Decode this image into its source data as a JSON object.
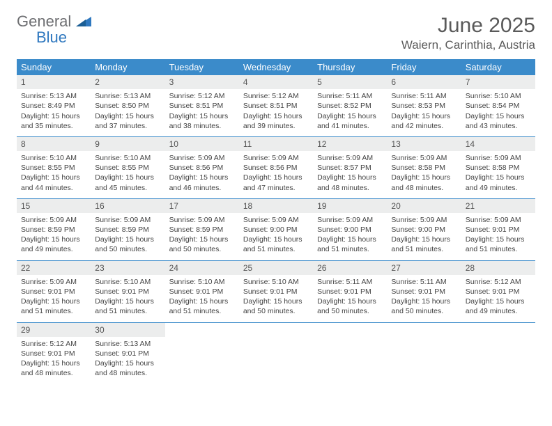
{
  "logo": {
    "word1": "General",
    "word2": "Blue"
  },
  "title": "June 2025",
  "location": "Waiern, Carinthia, Austria",
  "colors": {
    "header_bg": "#3b8bca",
    "header_text": "#ffffff",
    "daynum_bg": "#eceded",
    "rule": "#3b8bca",
    "logo_gray": "#6d6e71",
    "logo_blue": "#2f78bf"
  },
  "weekdays": [
    "Sunday",
    "Monday",
    "Tuesday",
    "Wednesday",
    "Thursday",
    "Friday",
    "Saturday"
  ],
  "weeks": [
    [
      {
        "n": "1",
        "sr": "Sunrise: 5:13 AM",
        "ss": "Sunset: 8:49 PM",
        "d1": "Daylight: 15 hours",
        "d2": "and 35 minutes."
      },
      {
        "n": "2",
        "sr": "Sunrise: 5:13 AM",
        "ss": "Sunset: 8:50 PM",
        "d1": "Daylight: 15 hours",
        "d2": "and 37 minutes."
      },
      {
        "n": "3",
        "sr": "Sunrise: 5:12 AM",
        "ss": "Sunset: 8:51 PM",
        "d1": "Daylight: 15 hours",
        "d2": "and 38 minutes."
      },
      {
        "n": "4",
        "sr": "Sunrise: 5:12 AM",
        "ss": "Sunset: 8:51 PM",
        "d1": "Daylight: 15 hours",
        "d2": "and 39 minutes."
      },
      {
        "n": "5",
        "sr": "Sunrise: 5:11 AM",
        "ss": "Sunset: 8:52 PM",
        "d1": "Daylight: 15 hours",
        "d2": "and 41 minutes."
      },
      {
        "n": "6",
        "sr": "Sunrise: 5:11 AM",
        "ss": "Sunset: 8:53 PM",
        "d1": "Daylight: 15 hours",
        "d2": "and 42 minutes."
      },
      {
        "n": "7",
        "sr": "Sunrise: 5:10 AM",
        "ss": "Sunset: 8:54 PM",
        "d1": "Daylight: 15 hours",
        "d2": "and 43 minutes."
      }
    ],
    [
      {
        "n": "8",
        "sr": "Sunrise: 5:10 AM",
        "ss": "Sunset: 8:55 PM",
        "d1": "Daylight: 15 hours",
        "d2": "and 44 minutes."
      },
      {
        "n": "9",
        "sr": "Sunrise: 5:10 AM",
        "ss": "Sunset: 8:55 PM",
        "d1": "Daylight: 15 hours",
        "d2": "and 45 minutes."
      },
      {
        "n": "10",
        "sr": "Sunrise: 5:09 AM",
        "ss": "Sunset: 8:56 PM",
        "d1": "Daylight: 15 hours",
        "d2": "and 46 minutes."
      },
      {
        "n": "11",
        "sr": "Sunrise: 5:09 AM",
        "ss": "Sunset: 8:56 PM",
        "d1": "Daylight: 15 hours",
        "d2": "and 47 minutes."
      },
      {
        "n": "12",
        "sr": "Sunrise: 5:09 AM",
        "ss": "Sunset: 8:57 PM",
        "d1": "Daylight: 15 hours",
        "d2": "and 48 minutes."
      },
      {
        "n": "13",
        "sr": "Sunrise: 5:09 AM",
        "ss": "Sunset: 8:58 PM",
        "d1": "Daylight: 15 hours",
        "d2": "and 48 minutes."
      },
      {
        "n": "14",
        "sr": "Sunrise: 5:09 AM",
        "ss": "Sunset: 8:58 PM",
        "d1": "Daylight: 15 hours",
        "d2": "and 49 minutes."
      }
    ],
    [
      {
        "n": "15",
        "sr": "Sunrise: 5:09 AM",
        "ss": "Sunset: 8:59 PM",
        "d1": "Daylight: 15 hours",
        "d2": "and 49 minutes."
      },
      {
        "n": "16",
        "sr": "Sunrise: 5:09 AM",
        "ss": "Sunset: 8:59 PM",
        "d1": "Daylight: 15 hours",
        "d2": "and 50 minutes."
      },
      {
        "n": "17",
        "sr": "Sunrise: 5:09 AM",
        "ss": "Sunset: 8:59 PM",
        "d1": "Daylight: 15 hours",
        "d2": "and 50 minutes."
      },
      {
        "n": "18",
        "sr": "Sunrise: 5:09 AM",
        "ss": "Sunset: 9:00 PM",
        "d1": "Daylight: 15 hours",
        "d2": "and 51 minutes."
      },
      {
        "n": "19",
        "sr": "Sunrise: 5:09 AM",
        "ss": "Sunset: 9:00 PM",
        "d1": "Daylight: 15 hours",
        "d2": "and 51 minutes."
      },
      {
        "n": "20",
        "sr": "Sunrise: 5:09 AM",
        "ss": "Sunset: 9:00 PM",
        "d1": "Daylight: 15 hours",
        "d2": "and 51 minutes."
      },
      {
        "n": "21",
        "sr": "Sunrise: 5:09 AM",
        "ss": "Sunset: 9:01 PM",
        "d1": "Daylight: 15 hours",
        "d2": "and 51 minutes."
      }
    ],
    [
      {
        "n": "22",
        "sr": "Sunrise: 5:09 AM",
        "ss": "Sunset: 9:01 PM",
        "d1": "Daylight: 15 hours",
        "d2": "and 51 minutes."
      },
      {
        "n": "23",
        "sr": "Sunrise: 5:10 AM",
        "ss": "Sunset: 9:01 PM",
        "d1": "Daylight: 15 hours",
        "d2": "and 51 minutes."
      },
      {
        "n": "24",
        "sr": "Sunrise: 5:10 AM",
        "ss": "Sunset: 9:01 PM",
        "d1": "Daylight: 15 hours",
        "d2": "and 51 minutes."
      },
      {
        "n": "25",
        "sr": "Sunrise: 5:10 AM",
        "ss": "Sunset: 9:01 PM",
        "d1": "Daylight: 15 hours",
        "d2": "and 50 minutes."
      },
      {
        "n": "26",
        "sr": "Sunrise: 5:11 AM",
        "ss": "Sunset: 9:01 PM",
        "d1": "Daylight: 15 hours",
        "d2": "and 50 minutes."
      },
      {
        "n": "27",
        "sr": "Sunrise: 5:11 AM",
        "ss": "Sunset: 9:01 PM",
        "d1": "Daylight: 15 hours",
        "d2": "and 50 minutes."
      },
      {
        "n": "28",
        "sr": "Sunrise: 5:12 AM",
        "ss": "Sunset: 9:01 PM",
        "d1": "Daylight: 15 hours",
        "d2": "and 49 minutes."
      }
    ],
    [
      {
        "n": "29",
        "sr": "Sunrise: 5:12 AM",
        "ss": "Sunset: 9:01 PM",
        "d1": "Daylight: 15 hours",
        "d2": "and 48 minutes."
      },
      {
        "n": "30",
        "sr": "Sunrise: 5:13 AM",
        "ss": "Sunset: 9:01 PM",
        "d1": "Daylight: 15 hours",
        "d2": "and 48 minutes."
      },
      null,
      null,
      null,
      null,
      null
    ]
  ]
}
